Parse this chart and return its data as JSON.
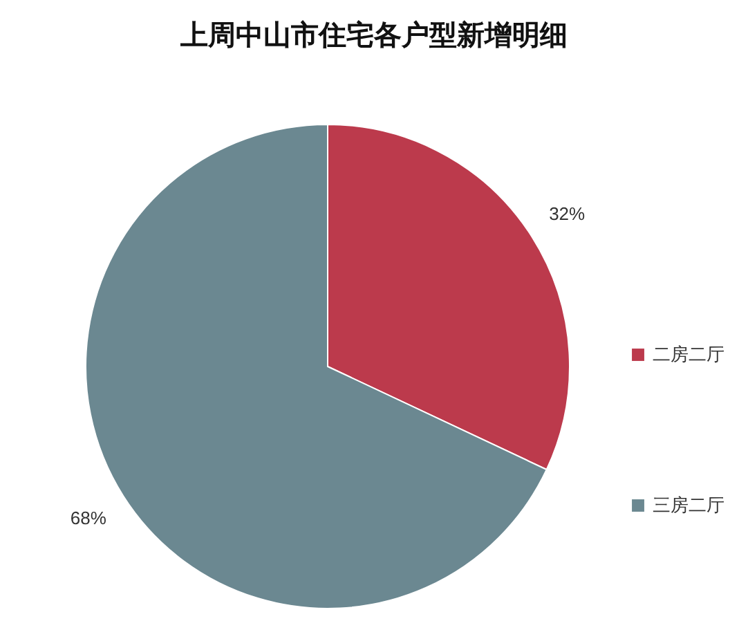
{
  "chart_data": {
    "type": "pie",
    "title": "上周中山市住宅各户型新增明细",
    "categories": [
      "二房二厅",
      "三房二厅"
    ],
    "values": [
      32,
      68
    ],
    "colors": [
      "#bc3a4c",
      "#6b8891"
    ],
    "value_labels": [
      "32%",
      "68%"
    ],
    "legend": "right"
  }
}
